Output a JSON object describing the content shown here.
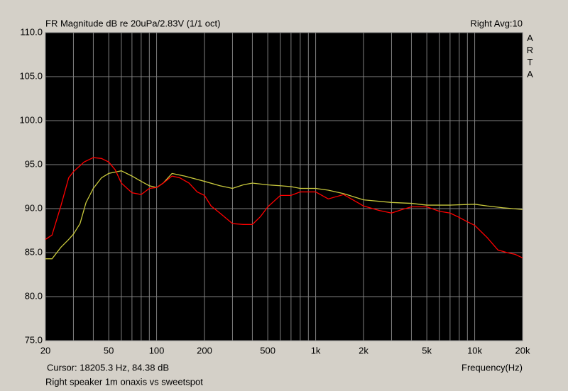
{
  "chart_data": {
    "type": "line",
    "title": "FR Magnitude dB re 20uPa/2.83V (1/1 oct)",
    "subtitle": "Right  Avg:10",
    "brand": "ARTA",
    "x_label": "Frequency(Hz)",
    "cursor": "Cursor: 18205.3 Hz, 84.38 dB",
    "caption": "Right speaker 1m onaxis vs sweetspot",
    "log_x": true,
    "grid": true,
    "background": "#000000",
    "grid_color": "#808080",
    "xlim": [
      20,
      20000
    ],
    "xticks": [
      20,
      50,
      100,
      200,
      500,
      {
        "value": 1000,
        "label": "1k"
      },
      {
        "value": 2000,
        "label": "2k"
      },
      {
        "value": 5000,
        "label": "5k"
      },
      {
        "value": 10000,
        "label": "10k"
      },
      {
        "value": 20000,
        "label": "20k"
      }
    ],
    "xminorticks": [
      30,
      40,
      60,
      70,
      80,
      90,
      300,
      400,
      600,
      700,
      800,
      900,
      3000,
      4000,
      6000,
      7000,
      8000,
      9000
    ],
    "ylim": [
      75,
      110
    ],
    "yticks": [
      {
        "value": 75,
        "label": "75.0"
      },
      {
        "value": 80,
        "label": "80.0"
      },
      {
        "value": 85,
        "label": "85.0"
      },
      {
        "value": 90,
        "label": "90.0"
      },
      {
        "value": 95,
        "label": "95.0"
      },
      {
        "value": 100,
        "label": "100.0"
      },
      {
        "value": 105,
        "label": "105.0"
      },
      {
        "value": 110,
        "label": "110.0"
      }
    ],
    "series": [
      {
        "color": "#ff0000",
        "x": [
          20,
          22,
          25,
          28,
          30,
          35,
          40,
          45,
          50,
          55,
          60,
          70,
          80,
          90,
          100,
          110,
          125,
          140,
          160,
          180,
          200,
          220,
          250,
          300,
          350,
          400,
          450,
          500,
          600,
          700,
          800,
          1000,
          1200,
          1500,
          2000,
          2500,
          3000,
          3500,
          4000,
          5000,
          6000,
          7000,
          8000,
          9000,
          10000,
          12000,
          14000,
          16000,
          18000,
          20000
        ],
        "values": [
          86.5,
          87,
          90.3,
          93.5,
          94.2,
          95.3,
          95.8,
          95.7,
          95.3,
          94.4,
          92.9,
          91.8,
          91.6,
          92.3,
          92.4,
          92.9,
          93.7,
          93.5,
          92.9,
          91.9,
          91.5,
          90.3,
          89.5,
          88.3,
          88.2,
          88.2,
          89.1,
          90.2,
          91.5,
          91.5,
          91.9,
          91.9,
          91.1,
          91.6,
          90.3,
          89.8,
          89.5,
          89.9,
          90.2,
          90.2,
          89.7,
          89.5,
          89,
          88.5,
          88.1,
          86.7,
          85.3,
          85,
          84.8,
          84.4
        ]
      },
      {
        "color": "#c8c83c",
        "x": [
          20,
          22,
          25,
          28,
          30,
          33,
          36,
          40,
          45,
          50,
          60,
          70,
          80,
          90,
          100,
          110,
          125,
          150,
          200,
          250,
          300,
          350,
          400,
          500,
          600,
          700,
          800,
          1000,
          1200,
          1500,
          2000,
          3000,
          4000,
          5000,
          7000,
          10000,
          12000,
          15000,
          20000
        ],
        "values": [
          84.3,
          84.3,
          85.6,
          86.5,
          87.1,
          88.3,
          90.7,
          92.3,
          93.5,
          94,
          94.3,
          93.7,
          93.1,
          92.6,
          92.4,
          92.9,
          94,
          93.7,
          93.1,
          92.6,
          92.3,
          92.7,
          92.9,
          92.7,
          92.6,
          92.5,
          92.3,
          92.3,
          92.1,
          91.7,
          91,
          90.7,
          90.6,
          90.4,
          90.4,
          90.5,
          90.3,
          90.1,
          89.9
        ]
      }
    ]
  }
}
